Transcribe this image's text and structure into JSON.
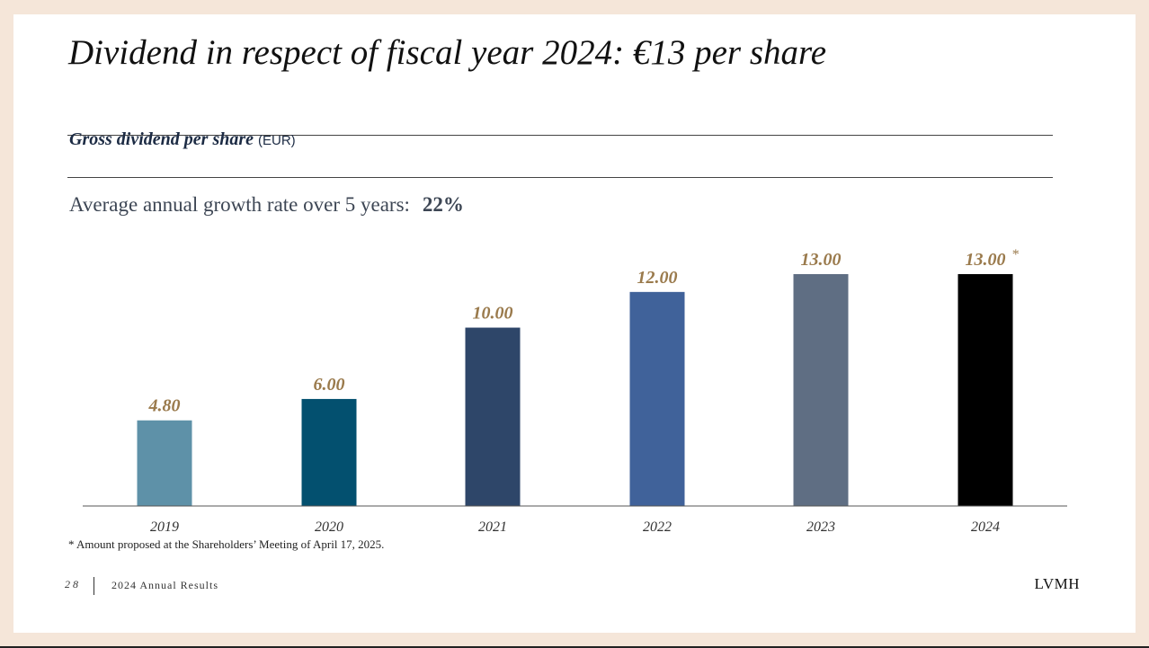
{
  "slide": {
    "title": "Dividend in respect of fiscal year 2024: €13 per share",
    "subtitle_main": "Gross dividend per share",
    "subtitle_unit": "(EUR)",
    "growth_label": "Average annual growth rate over 5 years:",
    "growth_value": "22%",
    "footnote": "* Amount proposed at the Shareholders’ Meeting of April 17, 2025.",
    "page_number": "28",
    "footer_label": "2024 Annual Results",
    "brand": "LVMH"
  },
  "chart_data": {
    "type": "bar",
    "categories": [
      "2019",
      "2020",
      "2021",
      "2022",
      "2023",
      "2024"
    ],
    "values": [
      4.8,
      6.0,
      10.0,
      12.0,
      13.0,
      13.0
    ],
    "value_labels": [
      "4.80",
      "6.00",
      "10.00",
      "12.00",
      "13.00",
      "13.00"
    ],
    "bar_colors": [
      "#5e91a8",
      "#03506f",
      "#2e4669",
      "#40629a",
      "#5f6e83",
      "#000000"
    ],
    "label_color": "#9a7a4c",
    "annotations": [
      {
        "category": "2024",
        "text": "*"
      }
    ],
    "ylim": [
      0,
      13
    ],
    "grid": false,
    "legend": "none"
  }
}
